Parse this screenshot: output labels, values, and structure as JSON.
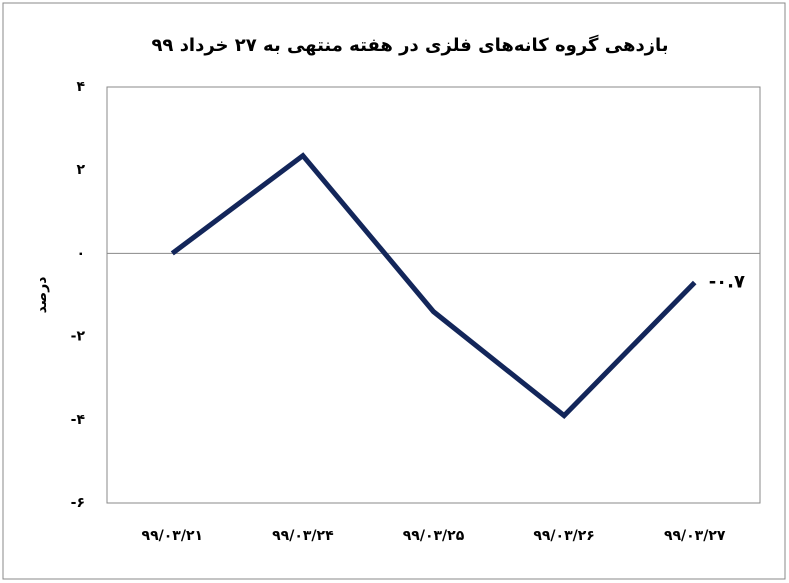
{
  "chart_data": {
    "type": "line",
    "title": "بازدهی گروه کانه‌های فلزی در هفته منتهی به ۲۷ خرداد ۹۹",
    "y_label": "درصد",
    "categories": [
      "۹۹/۰۳/۲۱",
      "۹۹/۰۳/۲۴",
      "۹۹/۰۳/۲۵",
      "۹۹/۰۳/۲۶",
      "۹۹/۰۳/۲۷"
    ],
    "values": [
      0,
      2.35,
      -1.4,
      -3.9,
      -0.7
    ],
    "value_labels": [
      null,
      null,
      null,
      null,
      "-۰.۷"
    ],
    "color": "#13265a",
    "ylim": [
      -6,
      4
    ],
    "yticks": [
      {
        "value": 4,
        "label": "۴"
      },
      {
        "value": 2,
        "label": "۲"
      },
      {
        "value": 0,
        "label": "۰"
      },
      {
        "value": -2,
        "label": "-۲"
      },
      {
        "value": -4,
        "label": "-۴"
      },
      {
        "value": -6,
        "label": "-۶"
      }
    ],
    "grid": false
  }
}
